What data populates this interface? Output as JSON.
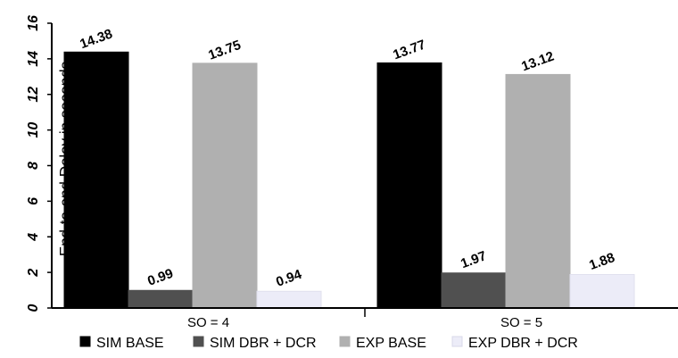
{
  "chart_data": {
    "type": "bar",
    "ylabel": "End-to-end Delay in seconds",
    "xlabel": "",
    "ylim": [
      0,
      16
    ],
    "yticks": [
      0,
      2,
      4,
      6,
      8,
      10,
      12,
      14,
      16
    ],
    "categories": [
      "SO = 4",
      "SO = 5"
    ],
    "series": [
      {
        "name": "SIM BASE",
        "color": "#000000",
        "values": [
          14.38,
          13.77
        ],
        "labels": [
          "14.38",
          "13.77"
        ]
      },
      {
        "name": "SIM DBR + DCR",
        "color": "#505050",
        "values": [
          0.99,
          1.97
        ],
        "labels": [
          "0.99",
          "1.97"
        ]
      },
      {
        "name": "EXP BASE",
        "color": "#b0b0b0",
        "values": [
          13.75,
          13.12
        ],
        "labels": [
          "13.75",
          "13.12"
        ]
      },
      {
        "name": "EXP DBR + DCR",
        "color": "#ececf8",
        "values": [
          0.94,
          1.88
        ],
        "labels": [
          "0.94",
          "1.88"
        ]
      }
    ],
    "legend": "bottom",
    "grid": false
  }
}
